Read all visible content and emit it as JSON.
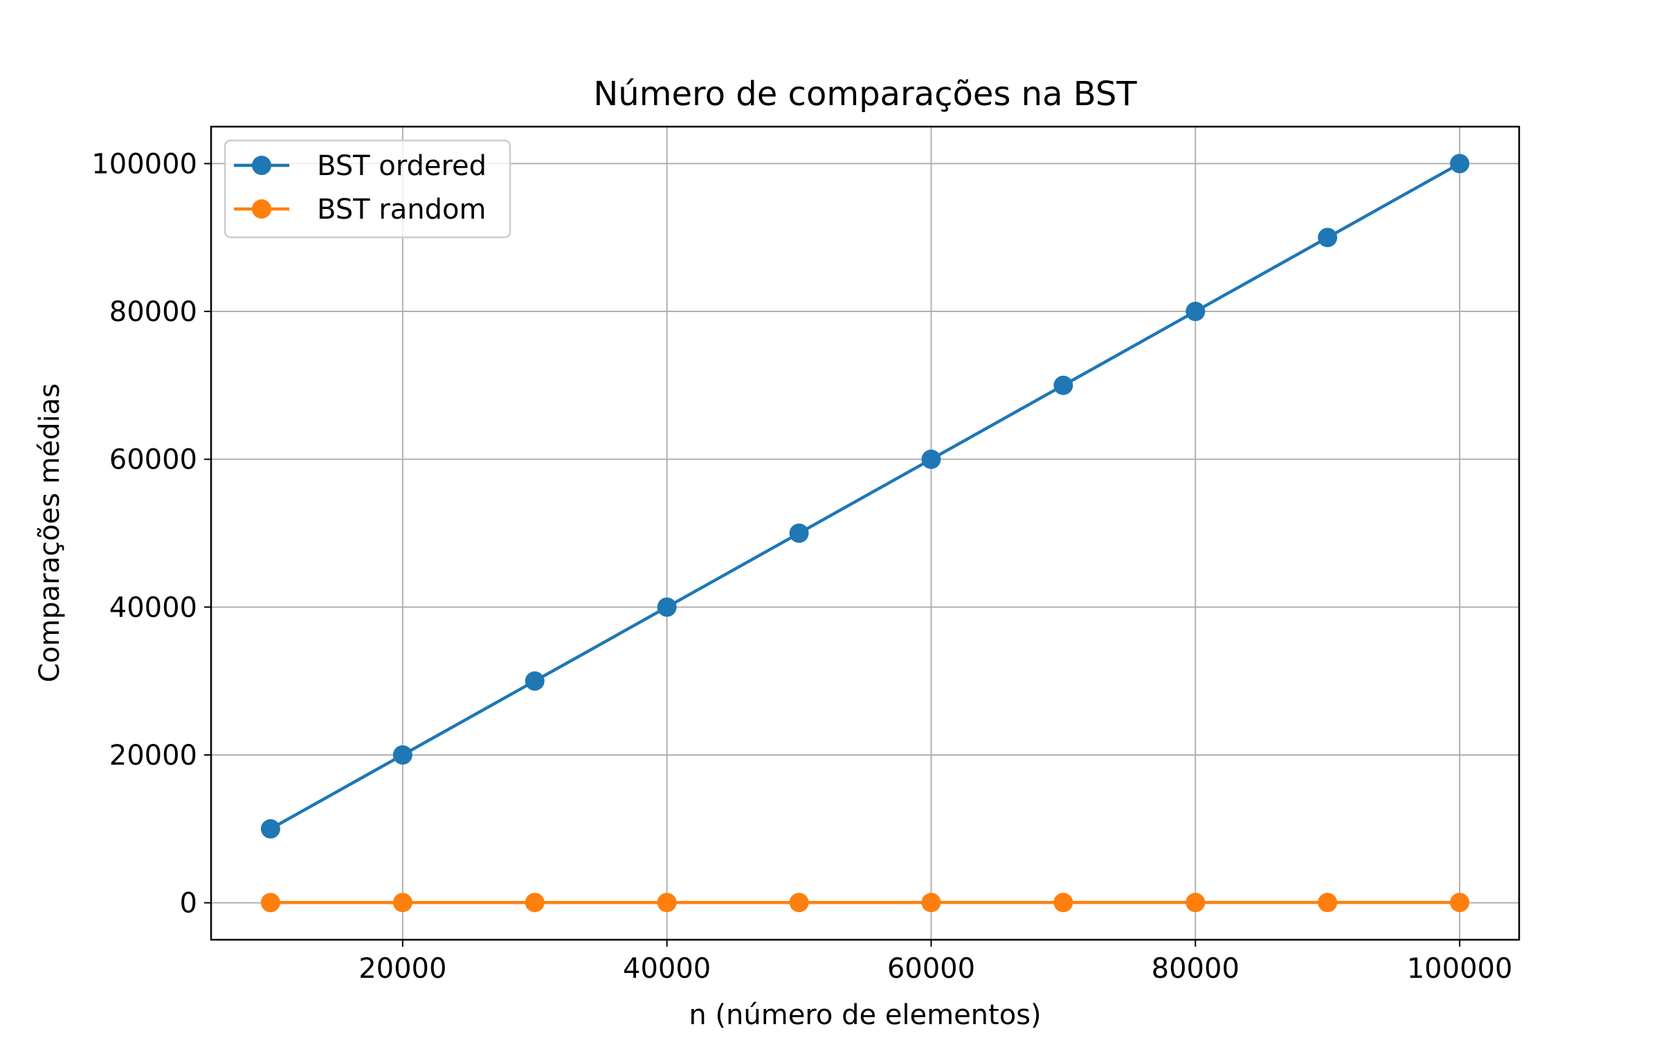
{
  "chart_data": {
    "type": "line",
    "title": "Número de comparações na BST",
    "xlabel": "n (número de elementos)",
    "ylabel": "Comparações médias",
    "x": [
      10000,
      20000,
      30000,
      40000,
      50000,
      60000,
      70000,
      80000,
      90000,
      100000
    ],
    "xlim": [
      5500,
      104500
    ],
    "ylim": [
      -5000,
      105000
    ],
    "xticks": [
      20000,
      40000,
      60000,
      80000,
      100000
    ],
    "xtick_labels": [
      "20000",
      "40000",
      "60000",
      "80000",
      "100000"
    ],
    "yticks": [
      0,
      20000,
      40000,
      60000,
      80000,
      100000
    ],
    "ytick_labels": [
      "0",
      "20000",
      "40000",
      "60000",
      "80000",
      "100000"
    ],
    "grid": true,
    "legend_position": "top-left",
    "series": [
      {
        "name": "BST ordered",
        "color": "#1f77b4",
        "marker": "circle",
        "values": [
          10000,
          20000,
          30000,
          40000,
          50000,
          60000,
          70000,
          80000,
          90000,
          100000
        ]
      },
      {
        "name": "BST random",
        "color": "#ff7f0e",
        "marker": "circle",
        "values": [
          30,
          33,
          35,
          36,
          37,
          38,
          39,
          40,
          40,
          41
        ]
      }
    ]
  }
}
